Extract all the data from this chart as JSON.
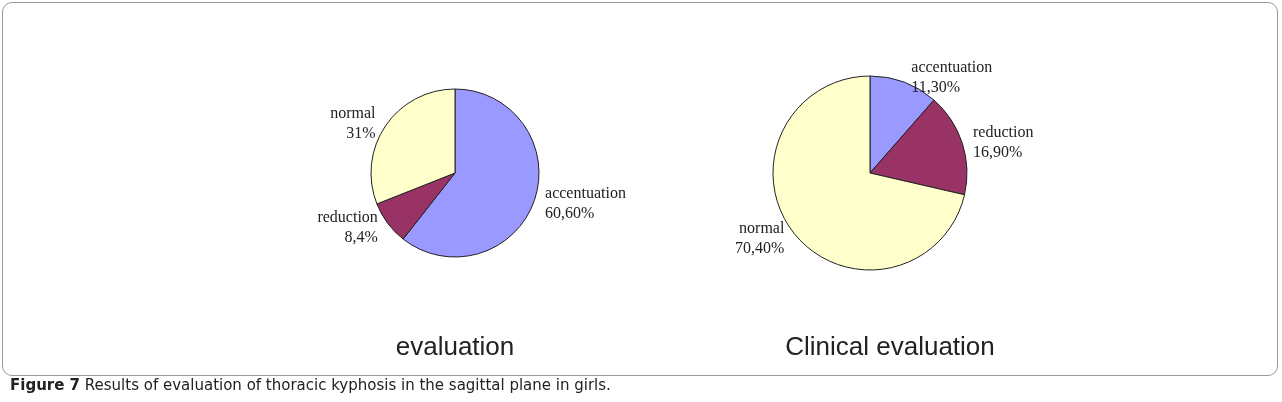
{
  "chart_data": [
    {
      "type": "pie",
      "title": "evaluation",
      "categories": [
        "accentuation",
        "reduction",
        "normal"
      ],
      "values": [
        60.6,
        8.4,
        31
      ],
      "value_labels": [
        "60,60%",
        "8,4%",
        "31%"
      ],
      "colors": [
        "#9999ff",
        "#993366",
        "#ffffcc"
      ],
      "annotations": [
        "Figure 7 Results of evaluation of thoracic kyphosis in the sagittal plane in girls."
      ]
    },
    {
      "type": "pie",
      "title": "Clinical evaluation",
      "categories": [
        "accentuation",
        "reduction",
        "normal"
      ],
      "values": [
        11.3,
        16.9,
        70.4
      ],
      "value_labels": [
        "11,30%",
        "16,90%",
        "70,40%"
      ],
      "colors": [
        "#9999ff",
        "#993366",
        "#ffffcc"
      ]
    }
  ]
}
